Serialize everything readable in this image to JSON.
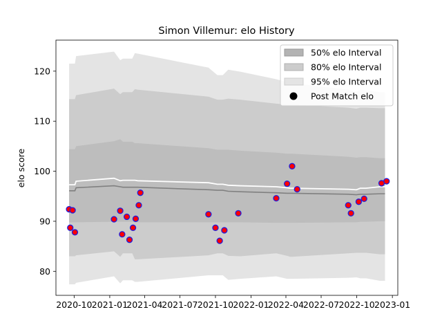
{
  "chart_data": {
    "type": "line",
    "title": "Simon Villemur: elo History",
    "xlabel": "",
    "ylabel": "elo score",
    "xlim": [
      "2020-08-15",
      "2023-01-15"
    ],
    "ylim": [
      75.2,
      126.2
    ],
    "x_ticks": [
      "2020-10",
      "2021-01",
      "2021-04",
      "2021-07",
      "2021-10",
      "2022-01",
      "2022-04",
      "2022-07",
      "2022-10",
      "2023-01"
    ],
    "y_ticks": [
      80,
      90,
      100,
      110,
      120
    ],
    "grid": false,
    "legend": {
      "placement": "top-right",
      "entries": [
        {
          "label": "50% elo Interval",
          "color": "#b3b3b3"
        },
        {
          "label": "80% elo Interval",
          "color": "#cccccc"
        },
        {
          "label": "95% elo Interval",
          "color": "#e4e4e4"
        },
        {
          "label": "Post Match elo",
          "color": "#000000"
        }
      ]
    },
    "bands": {
      "x": [
        "2020-09-18",
        "2020-10-03",
        "2020-10-06",
        "2021-01-12",
        "2021-01-28",
        "2021-02-04",
        "2021-02-28",
        "2021-03-07",
        "2021-03-14",
        "2021-09-13",
        "2021-10-06",
        "2021-10-20",
        "2021-11-03",
        "2021-12-04",
        "2022-03-07",
        "2022-04-04",
        "2022-04-12",
        "2022-04-17",
        "2022-09-09",
        "2022-09-30",
        "2022-10-10",
        "2022-10-25",
        "2022-11-30",
        "2022-12-13"
      ],
      "p95_high": [
        121.5,
        121.5,
        123.0,
        123.9,
        122.2,
        122.5,
        122.5,
        123.6,
        123.5,
        120.7,
        119.2,
        119.2,
        120.3,
        119.9,
        118.4,
        117.8,
        117.6,
        117.6,
        116.3,
        115.9,
        116.3,
        116.2,
        115.8,
        115.8
      ],
      "p80_high": [
        114.4,
        114.4,
        115.2,
        116.5,
        115.4,
        115.8,
        115.8,
        116.4,
        116.3,
        114.9,
        114.3,
        114.3,
        114.5,
        114.3,
        113.5,
        113.3,
        113.3,
        113.3,
        112.7,
        112.5,
        112.7,
        112.7,
        112.6,
        112.6
      ],
      "p50_high": [
        104.4,
        104.4,
        105.0,
        106.0,
        106.4,
        105.9,
        105.9,
        105.6,
        105.6,
        104.6,
        104.3,
        104.3,
        104.3,
        104.1,
        103.7,
        103.5,
        103.5,
        103.5,
        102.9,
        102.7,
        102.8,
        102.8,
        102.6,
        102.6
      ],
      "median": [
        96.1,
        96.1,
        96.7,
        97.1,
        96.9,
        96.8,
        96.8,
        96.8,
        96.8,
        96.3,
        96.2,
        96.2,
        96.0,
        95.9,
        95.7,
        95.6,
        95.6,
        95.6,
        95.4,
        95.3,
        95.4,
        95.4,
        95.5,
        95.5
      ],
      "mean": [
        97.3,
        97.3,
        98.0,
        98.6,
        98.1,
        98.2,
        98.2,
        98.2,
        98.1,
        97.7,
        97.4,
        97.4,
        97.2,
        97.1,
        96.9,
        96.7,
        96.6,
        96.6,
        96.4,
        96.3,
        96.6,
        96.6,
        96.9,
        96.9
      ],
      "p50_low": [
        89.8,
        89.8,
        89.8,
        89.9,
        89.9,
        89.9,
        89.9,
        89.8,
        89.8,
        89.8,
        89.8,
        89.8,
        89.8,
        89.8,
        89.7,
        89.7,
        89.7,
        89.7,
        89.8,
        89.8,
        89.9,
        89.9,
        90.0,
        90.0
      ],
      "p80_low": [
        83.0,
        83.0,
        83.2,
        84.0,
        82.9,
        83.6,
        83.6,
        82.4,
        82.4,
        83.2,
        83.6,
        83.6,
        83.1,
        83.0,
        83.6,
        83.1,
        82.9,
        82.9,
        83.6,
        83.7,
        83.7,
        83.7,
        83.4,
        83.4
      ],
      "p95_low": [
        77.4,
        77.4,
        77.7,
        79.0,
        77.6,
        78.2,
        78.2,
        77.9,
        77.9,
        79.2,
        79.2,
        79.2,
        78.3,
        78.5,
        79.0,
        78.5,
        78.5,
        78.5,
        78.7,
        78.8,
        78.6,
        78.6,
        78.1,
        78.1
      ]
    },
    "series": [
      {
        "name": "Post Match elo",
        "x": [
          "2020-09-18",
          "2020-09-21",
          "2020-09-27",
          "2020-10-03",
          "2021-01-12",
          "2021-01-28",
          "2021-02-02",
          "2021-02-14",
          "2021-02-21",
          "2021-03-02",
          "2021-03-09",
          "2021-03-17",
          "2021-03-21",
          "2021-09-13",
          "2021-10-01",
          "2021-10-12",
          "2021-10-24",
          "2021-11-29",
          "2022-03-07",
          "2022-04-04",
          "2022-04-17",
          "2022-04-30",
          "2022-09-09",
          "2022-09-16",
          "2022-10-06",
          "2022-10-20",
          "2022-12-04",
          "2022-12-17"
        ],
        "y": [
          92.4,
          88.7,
          92.2,
          87.8,
          90.4,
          92.1,
          87.4,
          90.9,
          86.3,
          88.7,
          90.5,
          93.2,
          95.7,
          91.4,
          88.7,
          86.1,
          88.2,
          91.6,
          94.6,
          97.5,
          101.0,
          96.4,
          93.2,
          91.6,
          93.9,
          94.5,
          97.6,
          98.0
        ]
      }
    ]
  }
}
